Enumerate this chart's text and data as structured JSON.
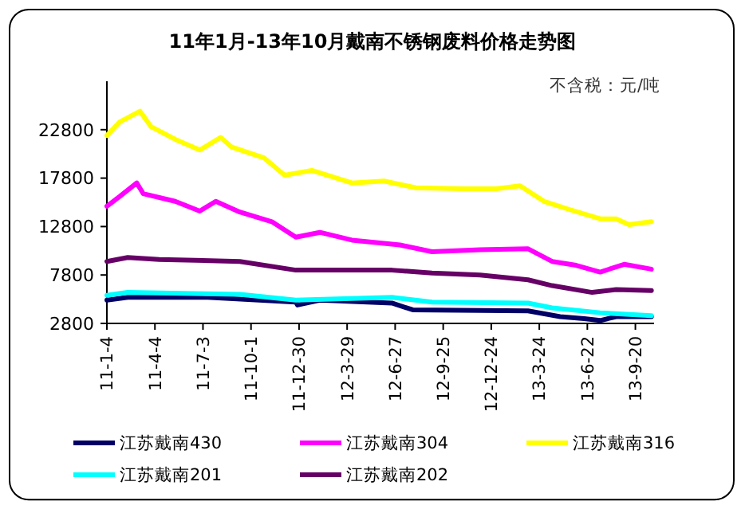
{
  "chart_data": {
    "type": "line",
    "title": "11年1月-13年10月戴南不锈钢废料价格走势图",
    "annotations": [
      "不含税：元/吨"
    ],
    "xlim": [
      "2011-01-04",
      "2013-10-25"
    ],
    "xticks": [
      {
        "value": "2011-01-04",
        "label": "11-1-4"
      },
      {
        "value": "2011-04-04",
        "label": "11-4-4"
      },
      {
        "value": "2011-07-03",
        "label": "11-7-3"
      },
      {
        "value": "2011-10-01",
        "label": "11-10-1"
      },
      {
        "value": "2011-12-30",
        "label": "11-12-30"
      },
      {
        "value": "2012-03-29",
        "label": "12-3-29"
      },
      {
        "value": "2012-06-27",
        "label": "12-6-27"
      },
      {
        "value": "2012-09-25",
        "label": "12-9-25"
      },
      {
        "value": "2012-12-24",
        "label": "12-12-24"
      },
      {
        "value": "2013-03-24",
        "label": "13-3-24"
      },
      {
        "value": "2013-06-22",
        "label": "13-6-22"
      },
      {
        "value": "2013-09-20",
        "label": "13-9-20"
      }
    ],
    "ylim": [
      2800,
      27800
    ],
    "yticks": [
      2800,
      7800,
      12800,
      17800,
      22800
    ],
    "grid": false,
    "legend": "bottom",
    "marker": "none",
    "line_style": "solid",
    "series": [
      {
        "name": "江苏戴南430",
        "color": "#000066",
        "x": [
          "2011-01-04",
          "2011-02-12",
          "2011-07-12",
          "2011-12-24",
          "2011-12-27",
          "2012-02-07",
          "2012-06-21",
          "2012-07-30",
          "2013-03-03",
          "2013-05-02",
          "2013-06-16",
          "2013-07-16",
          "2013-08-15",
          "2013-10-20"
        ],
        "values": [
          5200,
          5500,
          5500,
          5000,
          4700,
          5200,
          4900,
          4200,
          4100,
          3500,
          3300,
          3100,
          3500,
          3500
        ]
      },
      {
        "name": "江苏戴南304",
        "color": "#ff00ff",
        "x": [
          "2011-01-04",
          "2011-01-28",
          "2011-03-01",
          "2011-03-13",
          "2011-05-12",
          "2011-06-27",
          "2011-07-27",
          "2011-09-10",
          "2011-11-09",
          "2011-12-24",
          "2012-02-07",
          "2012-04-07",
          "2012-07-06",
          "2012-09-04",
          "2012-12-03",
          "2013-03-03",
          "2013-04-17",
          "2013-06-01",
          "2013-07-16",
          "2013-08-30",
          "2013-10-20"
        ],
        "values": [
          14900,
          15900,
          17300,
          16200,
          15400,
          14400,
          15400,
          14300,
          13300,
          11700,
          12200,
          11400,
          10900,
          10200,
          10400,
          10500,
          9200,
          8800,
          8100,
          8900,
          8400
        ]
      },
      {
        "name": "江苏戴南316",
        "color": "#ffff00",
        "x": [
          "2011-01-04",
          "2011-01-28",
          "2011-03-07",
          "2011-03-28",
          "2011-05-12",
          "2011-06-27",
          "2011-08-05",
          "2011-08-26",
          "2011-10-25",
          "2011-12-03",
          "2012-01-23",
          "2012-04-07",
          "2012-06-06",
          "2012-08-05",
          "2012-11-03",
          "2013-01-02",
          "2013-02-16",
          "2013-04-02",
          "2013-05-17",
          "2013-07-16",
          "2013-08-15",
          "2013-09-08",
          "2013-10-20"
        ],
        "values": [
          22200,
          23600,
          24700,
          23100,
          21800,
          20700,
          22000,
          21000,
          19900,
          18100,
          18600,
          17300,
          17500,
          16800,
          16700,
          16700,
          17000,
          15400,
          14600,
          13600,
          13600,
          13000,
          13300
        ]
      },
      {
        "name": "江苏戴南201",
        "color": "#00ffff",
        "x": [
          "2011-01-04",
          "2011-02-12",
          "2011-09-10",
          "2011-12-24",
          "2012-06-21",
          "2012-09-04",
          "2013-03-03",
          "2013-04-17",
          "2013-07-16",
          "2013-10-20"
        ],
        "values": [
          5700,
          6000,
          5800,
          5200,
          5500,
          5000,
          4900,
          4400,
          3900,
          3600
        ]
      },
      {
        "name": "江苏戴南202",
        "color": "#660066",
        "x": [
          "2011-01-04",
          "2011-02-12",
          "2011-04-12",
          "2011-09-10",
          "2011-12-24",
          "2012-06-21",
          "2012-09-04",
          "2012-12-03",
          "2013-03-03",
          "2013-04-17",
          "2013-07-01",
          "2013-08-15",
          "2013-10-20"
        ],
        "values": [
          9200,
          9600,
          9400,
          9200,
          8300,
          8300,
          8000,
          7800,
          7300,
          6700,
          6000,
          6300,
          6200
        ]
      }
    ]
  }
}
